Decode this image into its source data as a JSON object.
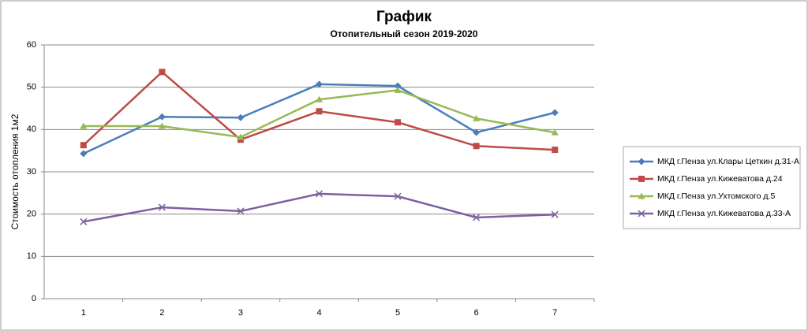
{
  "chart_data": {
    "type": "line",
    "title": "График",
    "subtitle": "Отопительный сезон 2019-2020",
    "y_label": "Стоимость отопления 1м2",
    "categories": [
      "1",
      "2",
      "3",
      "4",
      "5",
      "6",
      "7"
    ],
    "ylim": [
      0,
      60
    ],
    "yticks": [
      0,
      10,
      20,
      30,
      40,
      50,
      60
    ],
    "grid": true,
    "legend": "right",
    "series": [
      {
        "name": "МКД г.Пенза ул.Клары Цеткин д.31-А",
        "color": "#4a7ebb",
        "marker": "diamond",
        "values": [
          34.3,
          43.0,
          42.8,
          50.7,
          50.3,
          39.3,
          44.0
        ]
      },
      {
        "name": "МКД г.Пенза ул.Кижеватова д.24",
        "color": "#be4b48",
        "marker": "square",
        "values": [
          36.3,
          53.6,
          37.6,
          44.3,
          41.7,
          36.1,
          35.2
        ]
      },
      {
        "name": "МКД г.Пенза ул.Ухтомского д.5",
        "color": "#98b954",
        "marker": "triangle",
        "values": [
          40.8,
          40.8,
          38.2,
          47.1,
          49.3,
          42.6,
          39.3
        ]
      },
      {
        "name": "МКД г.Пенза ул.Кижеватова д.33-А",
        "color": "#7d60a0",
        "marker": "x",
        "values": [
          18.2,
          21.6,
          20.7,
          24.8,
          24.2,
          19.2,
          19.9
        ]
      }
    ]
  }
}
